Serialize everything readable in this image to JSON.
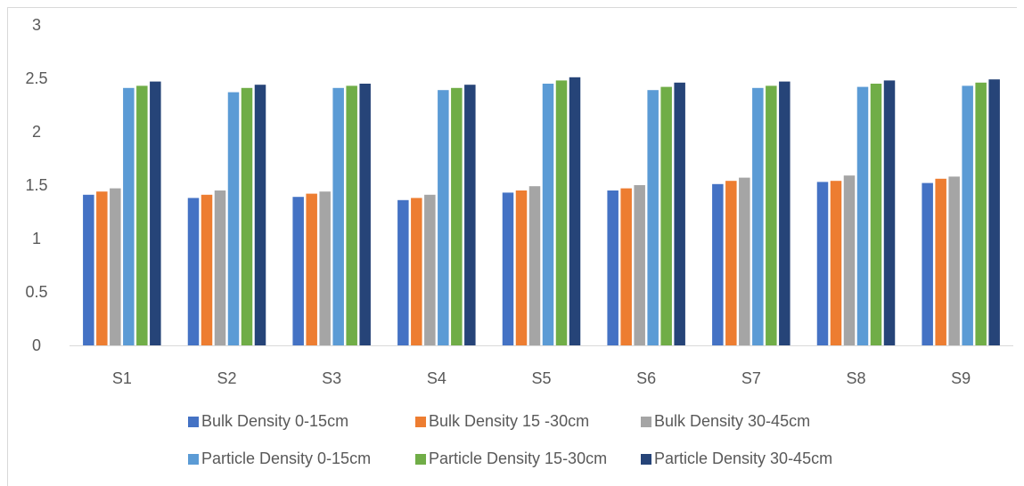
{
  "chart_data": {
    "type": "bar",
    "title": "",
    "xlabel": "",
    "ylabel": "",
    "ylim": [
      0,
      3
    ],
    "yticks": [
      0,
      0.5,
      1,
      1.5,
      2,
      2.5,
      3
    ],
    "ytick_labels": [
      "0",
      "0.5",
      "1",
      "1.5",
      "2",
      "2.5",
      "3"
    ],
    "grid": false,
    "legend_position": "bottom",
    "categories": [
      "S1",
      "S2",
      "S3",
      "S4",
      "S5",
      "S6",
      "S7",
      "S8",
      "S9"
    ],
    "series": [
      {
        "name": "Bulk Density 0-15cm",
        "color": "#4472c4",
        "values": [
          1.41,
          1.38,
          1.39,
          1.36,
          1.43,
          1.45,
          1.51,
          1.53,
          1.52
        ]
      },
      {
        "name": "Bulk Density 15 -30cm",
        "color": "#ed7d31",
        "values": [
          1.44,
          1.41,
          1.42,
          1.38,
          1.45,
          1.47,
          1.54,
          1.54,
          1.56
        ]
      },
      {
        "name": "Bulk Density 30-45cm",
        "color": "#a5a5a5",
        "values": [
          1.47,
          1.45,
          1.44,
          1.41,
          1.49,
          1.5,
          1.57,
          1.59,
          1.58
        ]
      },
      {
        "name": "Particle Density 0-15cm",
        "color": "#5b9bd5",
        "values": [
          2.41,
          2.37,
          2.41,
          2.39,
          2.45,
          2.39,
          2.41,
          2.42,
          2.43
        ]
      },
      {
        "name": "Particle Density 15-30cm",
        "color": "#70ad47",
        "values": [
          2.43,
          2.41,
          2.43,
          2.41,
          2.48,
          2.42,
          2.43,
          2.45,
          2.46
        ]
      },
      {
        "name": "Particle Density 30-45cm",
        "color": "#264478",
        "values": [
          2.47,
          2.44,
          2.45,
          2.44,
          2.51,
          2.46,
          2.47,
          2.48,
          2.49
        ]
      }
    ]
  }
}
